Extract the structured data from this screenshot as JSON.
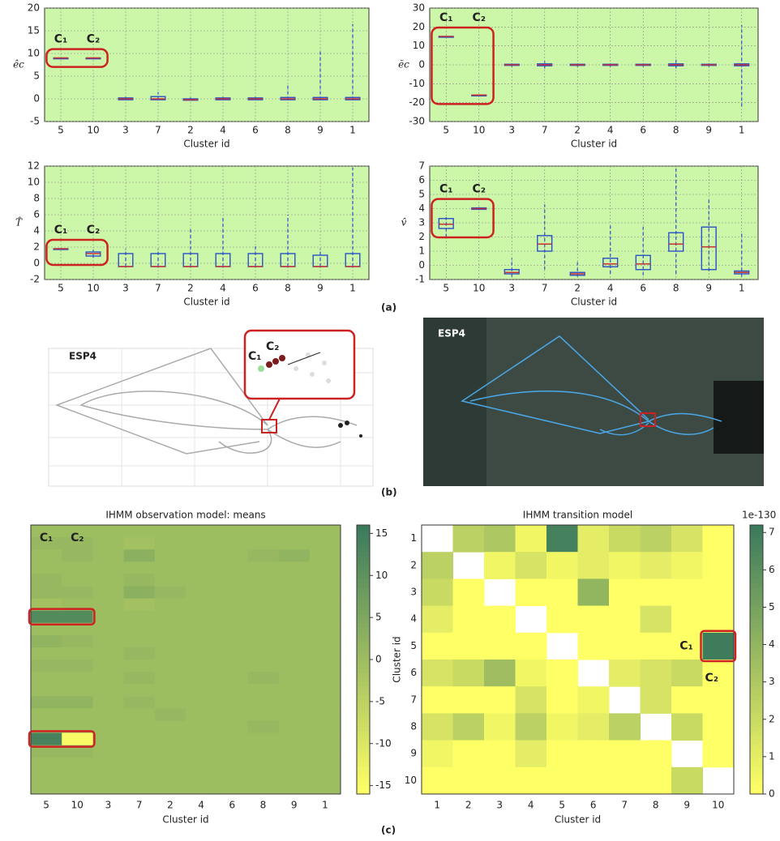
{
  "chart_data": [
    {
      "type": "box",
      "y_label": "êc",
      "x_label": "Cluster id",
      "categories": [
        "5",
        "10",
        "3",
        "7",
        "2",
        "4",
        "6",
        "8",
        "9",
        "1"
      ],
      "ylim": [
        -5,
        20
      ],
      "yticks": [
        -5,
        0,
        5,
        10,
        15,
        20
      ],
      "grid": true,
      "background": "#ccf7a8",
      "box_color": "#2b50c8",
      "median_color": "#c83232",
      "stats": {
        "min": [
          9,
          9,
          -0.3,
          -0.3,
          -0.4,
          -0.3,
          -0.3,
          -0.3,
          -0.3,
          -0.3
        ],
        "q1": [
          9,
          9,
          -0.2,
          -0.2,
          -0.3,
          -0.2,
          -0.2,
          -0.2,
          -0.2,
          -0.2
        ],
        "median": [
          9,
          9,
          0,
          0,
          -0.2,
          0,
          0,
          0,
          0,
          0
        ],
        "q3": [
          9,
          9,
          0.2,
          0.5,
          0,
          0.2,
          0.2,
          0.3,
          0.3,
          0.3
        ],
        "max": [
          9,
          9,
          0.5,
          1.5,
          0.3,
          0.5,
          0.5,
          3,
          11,
          16.5
        ]
      },
      "annotations": [
        "C₁",
        "C₂"
      ]
    },
    {
      "type": "box",
      "y_label": "ĕc",
      "x_label": "Cluster id",
      "categories": [
        "5",
        "10",
        "3",
        "7",
        "2",
        "4",
        "6",
        "8",
        "9",
        "1"
      ],
      "ylim": [
        -30,
        30
      ],
      "yticks": [
        -30,
        -20,
        -10,
        0,
        10,
        20,
        30
      ],
      "grid": true,
      "background": "#ccf7a8",
      "box_color": "#2b50c8",
      "median_color": "#c83232",
      "stats": {
        "min": [
          15,
          -16,
          -1,
          -2,
          -1,
          -1,
          -1,
          -2,
          -1,
          -22
        ],
        "q1": [
          15,
          -16,
          -0.3,
          -0.5,
          -0.3,
          -0.3,
          -0.3,
          -0.5,
          -0.3,
          -0.5
        ],
        "median": [
          15,
          -16,
          0,
          0,
          0,
          0,
          0,
          0,
          0,
          0
        ],
        "q3": [
          15,
          -16,
          0.3,
          0.5,
          0.3,
          0.3,
          0.3,
          0.5,
          0.3,
          0.5
        ],
        "max": [
          15,
          -16,
          1,
          2,
          1,
          1,
          1,
          3,
          1,
          21
        ]
      },
      "annotations": [
        "C₁",
        "C₂"
      ]
    },
    {
      "type": "box",
      "y_label": "T̂",
      "x_label": "Cluster id",
      "categories": [
        "5",
        "10",
        "3",
        "7",
        "2",
        "4",
        "6",
        "8",
        "9",
        "1"
      ],
      "ylim": [
        -2,
        12
      ],
      "yticks": [
        -2,
        0,
        2,
        4,
        6,
        8,
        10,
        12
      ],
      "grid": true,
      "background": "#ccf7a8",
      "box_color": "#2b50c8",
      "median_color": "#c83232",
      "stats": {
        "min": [
          1.8,
          0.7,
          -0.4,
          -0.4,
          -0.4,
          -0.4,
          -0.4,
          -0.4,
          -0.4,
          -0.4
        ],
        "q1": [
          1.8,
          0.9,
          -0.4,
          -0.4,
          -0.4,
          -0.4,
          -0.4,
          -0.4,
          -0.4,
          -0.4
        ],
        "median": [
          1.8,
          1.2,
          -0.4,
          -0.4,
          -0.4,
          -0.4,
          -0.4,
          -0.4,
          -0.4,
          -0.4
        ],
        "q3": [
          1.8,
          1.4,
          1.2,
          1.2,
          1.2,
          1.2,
          1.2,
          1.2,
          1.0,
          1.2
        ],
        "max": [
          1.8,
          1.7,
          1.8,
          1.8,
          4.2,
          5.6,
          2.4,
          6,
          1.8,
          11.8
        ]
      },
      "annotations": [
        "C₁",
        "C₂"
      ]
    },
    {
      "type": "box",
      "y_label": "v̂",
      "x_label": "Cluster id",
      "categories": [
        "5",
        "10",
        "3",
        "7",
        "2",
        "4",
        "6",
        "8",
        "9",
        "1"
      ],
      "ylim": [
        -1,
        7
      ],
      "yticks": [
        -1,
        0,
        1,
        2,
        3,
        4,
        5,
        6,
        7
      ],
      "grid": true,
      "background": "#ccf7a8",
      "box_color": "#2b50c8",
      "median_color": "#c83232",
      "stats": {
        "min": [
          2.0,
          3.9,
          -0.8,
          -0.3,
          -0.8,
          -0.6,
          -0.7,
          -0.6,
          -0.4,
          -0.8
        ],
        "q1": [
          2.6,
          3.95,
          -0.6,
          1.0,
          -0.7,
          -0.1,
          -0.3,
          1.0,
          -0.3,
          -0.6
        ],
        "median": [
          2.9,
          4.0,
          -0.5,
          1.5,
          -0.6,
          0.1,
          0.1,
          1.5,
          1.3,
          -0.5
        ],
        "q3": [
          3.3,
          4.05,
          -0.3,
          2.1,
          -0.5,
          0.5,
          0.7,
          2.3,
          2.7,
          -0.4
        ],
        "max": [
          3.4,
          4.1,
          0.5,
          4.3,
          0.3,
          2.8,
          2.9,
          6.9,
          4.7,
          2.3
        ]
      },
      "annotations": [
        "C₁",
        "C₂"
      ]
    },
    {
      "type": "heatmap",
      "title": "IHMM observation model: means",
      "x_label": "Cluster id",
      "x_categories": [
        "5",
        "10",
        "3",
        "7",
        "2",
        "4",
        "6",
        "8",
        "9",
        "1"
      ],
      "zlim": [
        -16,
        16
      ],
      "zticks": [
        -15,
        -10,
        -5,
        0,
        5,
        10,
        15
      ],
      "colors": [
        "#ffff66",
        "#3b7a5c"
      ],
      "values": [
        [
          0,
          0,
          0,
          0,
          0,
          0,
          0,
          0,
          0,
          0
        ],
        [
          1,
          1,
          0,
          -1,
          0,
          0,
          0,
          0,
          0,
          0
        ],
        [
          0,
          1,
          0,
          3,
          0,
          0,
          0,
          1,
          2,
          0
        ],
        [
          0,
          0,
          0,
          0,
          0,
          0,
          0,
          0,
          0,
          0
        ],
        [
          1,
          0,
          0,
          1,
          0,
          0,
          0,
          0,
          0,
          0
        ],
        [
          1,
          1,
          0,
          3,
          1,
          0,
          0,
          0,
          0,
          0
        ],
        [
          -1,
          0,
          0,
          -1,
          0,
          0,
          0,
          0,
          0,
          0
        ],
        [
          12,
          12,
          0,
          0,
          0,
          0,
          0,
          0,
          0,
          0
        ],
        [
          0,
          0,
          0,
          0,
          0,
          0,
          0,
          0,
          0,
          0
        ],
        [
          2,
          1,
          0,
          0,
          0,
          0,
          0,
          0,
          0,
          0
        ],
        [
          0,
          0,
          0,
          1,
          0,
          0,
          0,
          0,
          0,
          0
        ],
        [
          1,
          1,
          0,
          0,
          0,
          0,
          0,
          0,
          0,
          0
        ],
        [
          0,
          0,
          0,
          1,
          0,
          0,
          0,
          1,
          0,
          0
        ],
        [
          0,
          0,
          0,
          0,
          0,
          0,
          0,
          0,
          0,
          0
        ],
        [
          2,
          2,
          0,
          1,
          0,
          0,
          0,
          0,
          0,
          0
        ],
        [
          0,
          0,
          0,
          0,
          1,
          0,
          0,
          0,
          0,
          0
        ],
        [
          0,
          0,
          0,
          0,
          0,
          0,
          0,
          1,
          0,
          0
        ],
        [
          14,
          -15,
          0,
          0,
          0,
          0,
          0,
          0,
          0,
          0
        ],
        [
          1,
          1,
          0,
          0,
          0,
          0,
          0,
          0,
          0,
          0
        ],
        [
          0,
          0,
          0,
          0,
          0,
          0,
          0,
          0,
          0,
          0
        ],
        [
          0,
          0,
          0,
          0,
          0,
          0,
          0,
          0,
          0,
          0
        ],
        [
          0,
          0,
          0,
          0,
          0,
          0,
          0,
          0,
          0,
          0
        ]
      ],
      "annotations": [
        "C₁",
        "C₂"
      ]
    },
    {
      "type": "heatmap",
      "title": "IHMM transition model",
      "x_label": "Cluster id",
      "y_label": "Cluster id",
      "x_categories": [
        "1",
        "2",
        "3",
        "4",
        "5",
        "6",
        "7",
        "8",
        "9",
        "10"
      ],
      "y_categories": [
        "1",
        "2",
        "3",
        "4",
        "5",
        "6",
        "7",
        "8",
        "9",
        "10"
      ],
      "zlim": [
        0,
        7.2
      ],
      "zticks": [
        0,
        1,
        2,
        3,
        4,
        5,
        6,
        7
      ],
      "colorbar_label": "1e-130",
      "colors": [
        "#ffff66",
        "#3b7a5c"
      ],
      "values": [
        [
          null,
          2.5,
          3,
          0.5,
          6.8,
          1,
          2,
          2.5,
          1.5,
          0
        ],
        [
          2.5,
          null,
          0.5,
          1.5,
          0.5,
          1,
          0.5,
          1,
          0.5,
          0
        ],
        [
          2,
          0,
          null,
          0,
          0,
          4,
          0,
          0,
          0,
          0
        ],
        [
          1,
          0,
          0,
          null,
          0,
          0,
          0,
          1.5,
          0,
          0
        ],
        [
          0,
          0,
          0,
          0,
          null,
          0,
          0,
          0,
          0,
          7.1
        ],
        [
          1.5,
          2,
          3.5,
          0.5,
          0,
          null,
          1,
          1.5,
          2,
          0
        ],
        [
          0,
          0,
          0,
          1.5,
          0,
          0.5,
          null,
          1.5,
          0,
          0
        ],
        [
          1.5,
          2.5,
          0.5,
          2.5,
          0.5,
          1,
          2.5,
          null,
          2,
          0
        ],
        [
          0.5,
          0,
          0,
          1,
          0,
          0,
          0,
          0,
          null,
          0
        ],
        [
          0,
          0,
          0,
          0,
          0,
          0,
          0,
          0,
          2,
          null
        ]
      ],
      "annotations": [
        "C₁",
        "C₂"
      ]
    }
  ],
  "trajectories": {
    "left_label": "ESP4",
    "right_label": "ESP4",
    "inset": [
      "C₁",
      "C₂"
    ]
  },
  "panel_labels": [
    "(a)",
    "(b)",
    "(c)"
  ]
}
